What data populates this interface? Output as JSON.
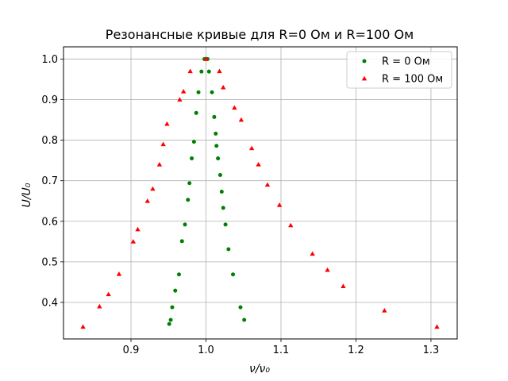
{
  "chart_data": {
    "type": "scatter",
    "title": "Резонансные кривые для R=0 Ом и R=100 Ом",
    "xlabel": "ν/ν₀",
    "ylabel": "U/U₀",
    "xlim": [
      0.81,
      1.335
    ],
    "ylim": [
      0.31,
      1.03
    ],
    "xticks": [
      0.9,
      1.0,
      1.1,
      1.2,
      1.3
    ],
    "yticks": [
      0.4,
      0.5,
      0.6,
      0.7,
      0.8,
      0.9,
      1.0
    ],
    "xtick_labels": [
      "0.9",
      "1.0",
      "1.1",
      "1.2",
      "1.3"
    ],
    "ytick_labels": [
      "0.4",
      "0.5",
      "0.6",
      "0.7",
      "0.8",
      "0.9",
      "1.0"
    ],
    "grid": true,
    "legend_position": "top-right",
    "series": [
      {
        "name": "R = 0 Ом",
        "marker": "circle",
        "color": "#008000",
        "points": [
          [
            0.951,
            0.347
          ],
          [
            0.953,
            0.357
          ],
          [
            0.955,
            0.388
          ],
          [
            0.959,
            0.429
          ],
          [
            0.964,
            0.469
          ],
          [
            0.968,
            0.551
          ],
          [
            0.972,
            0.592
          ],
          [
            0.976,
            0.653
          ],
          [
            0.978,
            0.694
          ],
          [
            0.981,
            0.755
          ],
          [
            0.984,
            0.796
          ],
          [
            0.987,
            0.867
          ],
          [
            0.99,
            0.918
          ],
          [
            0.994,
            0.969
          ],
          [
            0.998,
            1.0
          ],
          [
            1.002,
            1.0
          ],
          [
            1.004,
            0.969
          ],
          [
            1.008,
            0.918
          ],
          [
            1.011,
            0.857
          ],
          [
            1.013,
            0.816
          ],
          [
            1.014,
            0.786
          ],
          [
            1.016,
            0.755
          ],
          [
            1.019,
            0.714
          ],
          [
            1.021,
            0.673
          ],
          [
            1.023,
            0.633
          ],
          [
            1.026,
            0.592
          ],
          [
            1.03,
            0.531
          ],
          [
            1.036,
            0.469
          ],
          [
            1.046,
            0.388
          ],
          [
            1.051,
            0.357
          ]
        ]
      },
      {
        "name": "R = 100 Ом",
        "marker": "triangle",
        "color": "#ff0000",
        "points": [
          [
            0.836,
            0.34
          ],
          [
            0.858,
            0.39
          ],
          [
            0.87,
            0.42
          ],
          [
            0.884,
            0.47
          ],
          [
            0.903,
            0.55
          ],
          [
            0.909,
            0.58
          ],
          [
            0.922,
            0.65
          ],
          [
            0.929,
            0.68
          ],
          [
            0.938,
            0.74
          ],
          [
            0.943,
            0.79
          ],
          [
            0.948,
            0.84
          ],
          [
            0.965,
            0.9
          ],
          [
            0.97,
            0.92
          ],
          [
            0.979,
            0.97
          ],
          [
            1.0,
            1.0
          ],
          [
            1.018,
            0.97
          ],
          [
            1.023,
            0.93
          ],
          [
            1.038,
            0.88
          ],
          [
            1.047,
            0.85
          ],
          [
            1.061,
            0.78
          ],
          [
            1.07,
            0.74
          ],
          [
            1.082,
            0.69
          ],
          [
            1.098,
            0.64
          ],
          [
            1.113,
            0.59
          ],
          [
            1.142,
            0.52
          ],
          [
            1.162,
            0.48
          ],
          [
            1.183,
            0.44
          ],
          [
            1.238,
            0.38
          ],
          [
            1.308,
            0.34
          ]
        ]
      }
    ]
  }
}
